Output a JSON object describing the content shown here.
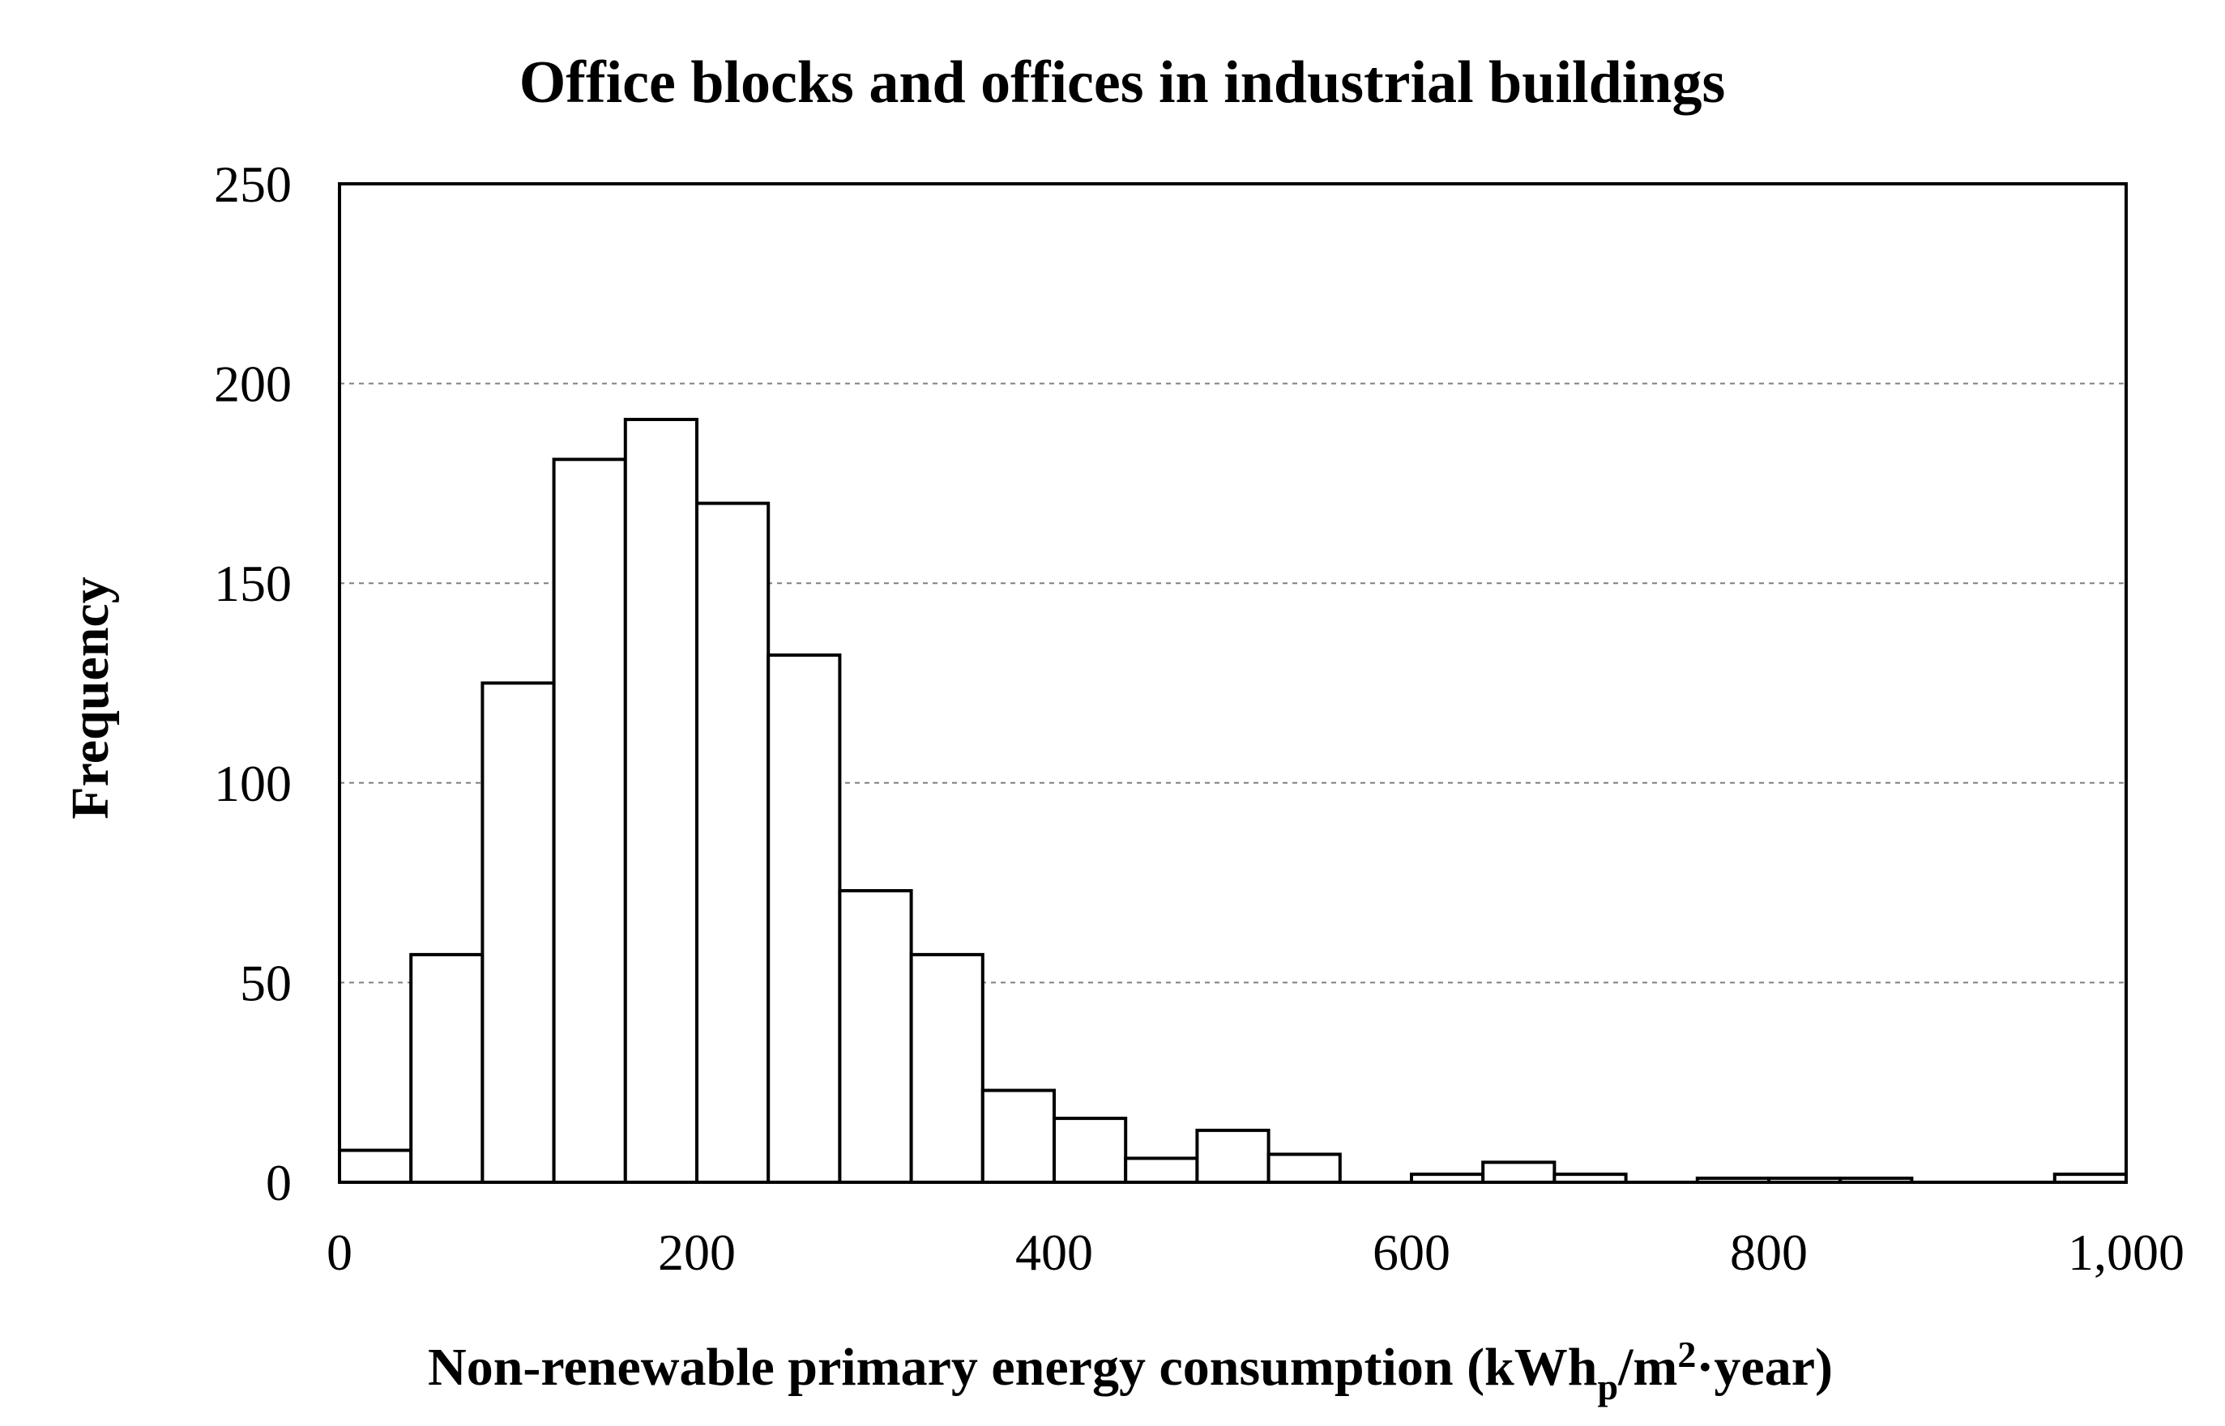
{
  "chart_data": {
    "type": "histogram",
    "title": "Office blocks and offices in industrial buildings",
    "xlabel": "Non-renewable primary energy consumption (kWh",
    "xlabel_subscript": "p",
    "xlabel_tail": "/m",
    "xlabel_superscript": "2",
    "xlabel_end": "·year)",
    "ylabel": "Frequency",
    "xlim": [
      0,
      1000
    ],
    "ylim": [
      0,
      250
    ],
    "x_ticks": [
      0,
      200,
      400,
      600,
      800,
      1000
    ],
    "x_tick_labels": [
      "0",
      "200",
      "400",
      "600",
      "800",
      "1,000"
    ],
    "y_ticks": [
      0,
      50,
      100,
      150,
      200,
      250
    ],
    "y_tick_labels": [
      "0",
      "50",
      "100",
      "150",
      "200",
      "250"
    ],
    "grid": "horizontal-dashed",
    "bin_width": 40,
    "bins": [
      {
        "x0": 0,
        "x1": 40,
        "value": 8
      },
      {
        "x0": 40,
        "x1": 80,
        "value": 57
      },
      {
        "x0": 80,
        "x1": 120,
        "value": 125
      },
      {
        "x0": 120,
        "x1": 160,
        "value": 181
      },
      {
        "x0": 160,
        "x1": 200,
        "value": 191
      },
      {
        "x0": 200,
        "x1": 240,
        "value": 170
      },
      {
        "x0": 240,
        "x1": 280,
        "value": 132
      },
      {
        "x0": 280,
        "x1": 320,
        "value": 73
      },
      {
        "x0": 320,
        "x1": 360,
        "value": 57
      },
      {
        "x0": 360,
        "x1": 400,
        "value": 23
      },
      {
        "x0": 400,
        "x1": 440,
        "value": 16
      },
      {
        "x0": 440,
        "x1": 480,
        "value": 6
      },
      {
        "x0": 480,
        "x1": 520,
        "value": 13
      },
      {
        "x0": 520,
        "x1": 560,
        "value": 7
      },
      {
        "x0": 560,
        "x1": 600,
        "value": 0
      },
      {
        "x0": 600,
        "x1": 640,
        "value": 2
      },
      {
        "x0": 640,
        "x1": 680,
        "value": 5
      },
      {
        "x0": 680,
        "x1": 720,
        "value": 2
      },
      {
        "x0": 720,
        "x1": 760,
        "value": 0
      },
      {
        "x0": 760,
        "x1": 800,
        "value": 1
      },
      {
        "x0": 800,
        "x1": 840,
        "value": 1
      },
      {
        "x0": 840,
        "x1": 880,
        "value": 1
      },
      {
        "x0": 880,
        "x1": 920,
        "value": 0
      },
      {
        "x0": 920,
        "x1": 960,
        "value": 0
      },
      {
        "x0": 960,
        "x1": 1000,
        "value": 2
      }
    ]
  }
}
